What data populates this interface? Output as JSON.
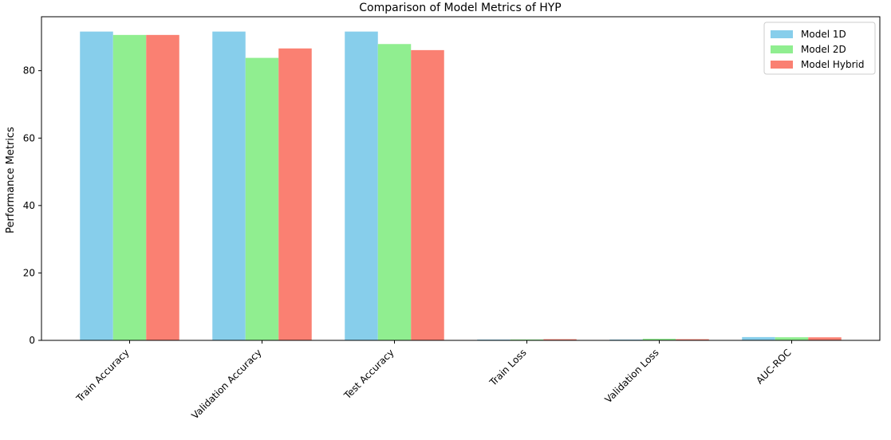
{
  "chart_data": {
    "type": "bar",
    "title": "Comparison of Model Metrics of HYP",
    "xlabel": "",
    "ylabel": "Performance Metrics",
    "categories": [
      "Train Accuracy",
      "Validation Accuracy",
      "Test Accuracy",
      "Train Loss",
      "Validation Loss",
      "AUC-ROC"
    ],
    "series": [
      {
        "name": "Model 1D",
        "color": "#87CEEB",
        "values": [
          91.6,
          91.6,
          91.6,
          0.25,
          0.25,
          0.97
        ]
      },
      {
        "name": "Model 2D",
        "color": "#90EE90",
        "values": [
          90.6,
          83.8,
          87.9,
          0.28,
          0.48,
          0.92
        ]
      },
      {
        "name": "Model Hybrid",
        "color": "#FA8072",
        "values": [
          90.6,
          86.6,
          86.1,
          0.35,
          0.35,
          0.9
        ]
      }
    ],
    "ylim": [
      0,
      96
    ],
    "yticks": [
      0,
      20,
      40,
      60,
      80
    ],
    "grid": false,
    "legend_position": "upper right"
  }
}
